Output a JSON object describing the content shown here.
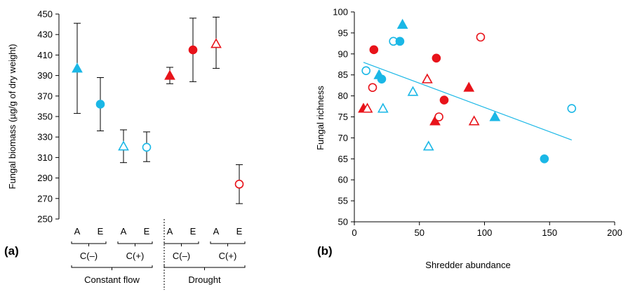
{
  "colors": {
    "cyan": "#1ab7e6",
    "red": "#e8131a",
    "line": "#1ab7e6"
  },
  "chart_data": [
    {
      "type": "scatter",
      "panel_label": "(a)",
      "ylabel": "Fungal biomass (µg/g of dry weight)",
      "ylim": [
        250,
        450
      ],
      "yticks": [
        250,
        270,
        290,
        310,
        330,
        350,
        370,
        390,
        410,
        430,
        450
      ],
      "categories": [
        "A",
        "E",
        "A",
        "E",
        "A",
        "E",
        "A",
        "E"
      ],
      "level2_labels": [
        "C(–)",
        "C(+)",
        "C(–)",
        "C(+)"
      ],
      "level3_labels": [
        "Constant flow",
        "Drought"
      ],
      "points": [
        {
          "category": 0,
          "value": 397,
          "error_low": 353,
          "error_high": 441,
          "marker": "triangle",
          "filled": true,
          "color": "cyan"
        },
        {
          "category": 1,
          "value": 362,
          "error_low": 336,
          "error_high": 388,
          "marker": "circle",
          "filled": true,
          "color": "cyan"
        },
        {
          "category": 2,
          "value": 321,
          "error_low": 305,
          "error_high": 337,
          "marker": "triangle",
          "filled": false,
          "color": "cyan"
        },
        {
          "category": 3,
          "value": 320,
          "error_low": 306,
          "error_high": 335,
          "marker": "circle",
          "filled": false,
          "color": "cyan"
        },
        {
          "category": 4,
          "value": 390,
          "error_low": 382,
          "error_high": 398,
          "marker": "triangle",
          "filled": true,
          "color": "red"
        },
        {
          "category": 5,
          "value": 415,
          "error_low": 384,
          "error_high": 446,
          "marker": "circle",
          "filled": true,
          "color": "red"
        },
        {
          "category": 6,
          "value": 421,
          "error_low": 397,
          "error_high": 447,
          "marker": "triangle",
          "filled": false,
          "color": "red"
        },
        {
          "category": 7,
          "value": 284,
          "error_low": 265,
          "error_high": 303,
          "marker": "circle",
          "filled": false,
          "color": "red"
        }
      ]
    },
    {
      "type": "scatter",
      "panel_label": "(b)",
      "xlabel": "Shredder abundance",
      "ylabel": "Fungal richness",
      "xlim": [
        0,
        200
      ],
      "ylim": [
        50,
        100
      ],
      "xticks": [
        0,
        50,
        100,
        150,
        200
      ],
      "yticks": [
        50,
        55,
        60,
        65,
        70,
        75,
        80,
        85,
        90,
        95,
        100
      ],
      "trendline": {
        "x": [
          7,
          167
        ],
        "y": [
          88,
          69.5
        ],
        "color": "cyan"
      },
      "points": [
        {
          "x": 7,
          "y": 77,
          "marker": "triangle",
          "filled": true,
          "color": "red"
        },
        {
          "x": 9,
          "y": 86,
          "marker": "circle",
          "filled": false,
          "color": "cyan"
        },
        {
          "x": 10,
          "y": 77,
          "marker": "triangle",
          "filled": false,
          "color": "red"
        },
        {
          "x": 14,
          "y": 82,
          "marker": "circle",
          "filled": false,
          "color": "red"
        },
        {
          "x": 15,
          "y": 91,
          "marker": "circle",
          "filled": true,
          "color": "red"
        },
        {
          "x": 19,
          "y": 85,
          "marker": "triangle",
          "filled": true,
          "color": "cyan"
        },
        {
          "x": 21,
          "y": 84,
          "marker": "circle",
          "filled": true,
          "color": "cyan"
        },
        {
          "x": 22,
          "y": 77,
          "marker": "triangle",
          "filled": false,
          "color": "cyan"
        },
        {
          "x": 30,
          "y": 93,
          "marker": "circle",
          "filled": false,
          "color": "cyan"
        },
        {
          "x": 35,
          "y": 93,
          "marker": "circle",
          "filled": true,
          "color": "cyan"
        },
        {
          "x": 37,
          "y": 97,
          "marker": "triangle",
          "filled": true,
          "color": "cyan"
        },
        {
          "x": 45,
          "y": 81,
          "marker": "triangle",
          "filled": false,
          "color": "cyan"
        },
        {
          "x": 56,
          "y": 84,
          "marker": "triangle",
          "filled": false,
          "color": "red"
        },
        {
          "x": 57,
          "y": 68,
          "marker": "triangle",
          "filled": false,
          "color": "cyan"
        },
        {
          "x": 62,
          "y": 74,
          "marker": "triangle",
          "filled": true,
          "color": "red"
        },
        {
          "x": 63,
          "y": 89,
          "marker": "circle",
          "filled": true,
          "color": "red"
        },
        {
          "x": 65,
          "y": 75,
          "marker": "circle",
          "filled": false,
          "color": "red"
        },
        {
          "x": 69,
          "y": 79,
          "marker": "circle",
          "filled": true,
          "color": "red"
        },
        {
          "x": 88,
          "y": 82,
          "marker": "triangle",
          "filled": true,
          "color": "red"
        },
        {
          "x": 92,
          "y": 74,
          "marker": "triangle",
          "filled": false,
          "color": "red"
        },
        {
          "x": 97,
          "y": 94,
          "marker": "circle",
          "filled": false,
          "color": "red"
        },
        {
          "x": 108,
          "y": 75,
          "marker": "triangle",
          "filled": true,
          "color": "cyan"
        },
        {
          "x": 146,
          "y": 65,
          "marker": "circle",
          "filled": true,
          "color": "cyan"
        },
        {
          "x": 167,
          "y": 77,
          "marker": "circle",
          "filled": false,
          "color": "cyan"
        }
      ]
    }
  ]
}
